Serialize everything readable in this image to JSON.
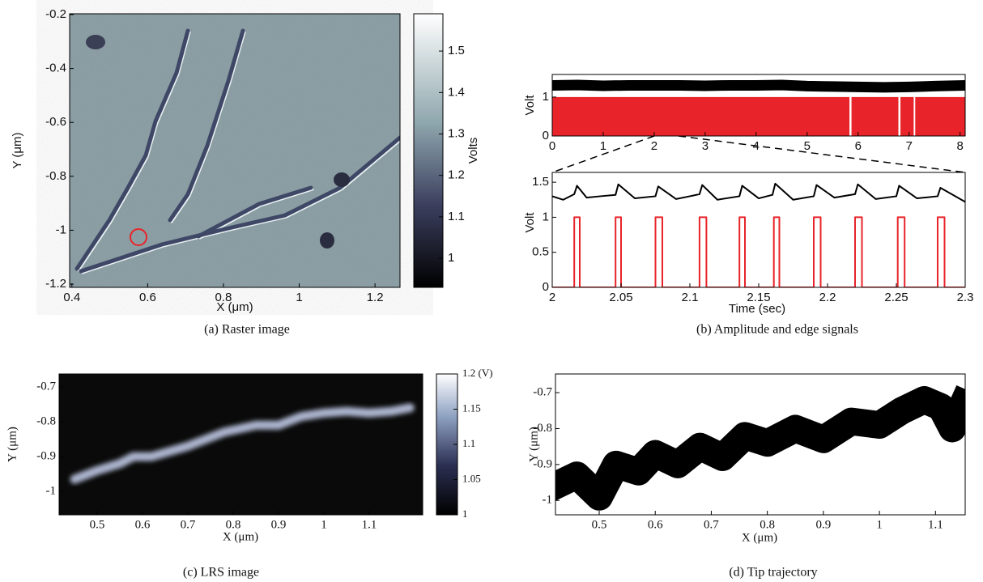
{
  "chart_data": [
    {
      "type": "heatmap",
      "caption": "(a) Raster image",
      "x_label": "X (μm)",
      "y_label": "Y (μm)",
      "xlim": [
        0.394,
        1.266
      ],
      "ylim": [
        -1.212,
        -0.197
      ],
      "xticks": [
        0.4,
        0.6,
        0.8,
        1,
        1.2
      ],
      "yticks": [
        -1.2,
        -1,
        -0.8,
        -0.6,
        -0.4,
        -0.2
      ],
      "colorbar": {
        "label": "Volts",
        "lim": [
          0.93,
          1.59
        ],
        "ticks": [
          1,
          1.1,
          1.2,
          1.3,
          1.4,
          1.5
        ]
      }
    },
    {
      "type": "line",
      "y_label": "Volt",
      "xlim": [
        0,
        8.1
      ],
      "ylim": [
        0,
        1.58
      ],
      "xticks": [
        0,
        1,
        2,
        3,
        4,
        5,
        6,
        7,
        8
      ],
      "yticks": [
        0,
        1
      ],
      "series": [
        {
          "color": "#e8242a",
          "fill": true,
          "x": [
            0,
            5.83,
            5.83,
            5.87,
            5.87,
            6.79,
            6.79,
            6.83,
            6.83,
            7.09,
            7.09,
            7.12,
            7.12,
            8.1
          ],
          "values": [
            1,
            1,
            0,
            0,
            1,
            1,
            0,
            0,
            1,
            1,
            0,
            0,
            1,
            1
          ]
        },
        {
          "color": "#000000",
          "width": 13,
          "x": [
            0,
            0.5,
            1,
            1.5,
            2,
            2.5,
            3,
            3.5,
            4,
            4.5,
            5,
            5.5,
            6,
            6.5,
            7,
            7.5,
            8.1
          ],
          "values": [
            1.3,
            1.31,
            1.29,
            1.3,
            1.3,
            1.3,
            1.29,
            1.3,
            1.3,
            1.31,
            1.28,
            1.27,
            1.26,
            1.25,
            1.26,
            1.28,
            1.3
          ]
        }
      ]
    },
    {
      "type": "line",
      "caption": "(b) Amplitude and edge signals",
      "x_label": "Time (sec)",
      "y_label": "Volt",
      "xlim": [
        2,
        2.3
      ],
      "ylim": [
        0,
        1.64
      ],
      "xticks": [
        2,
        2.05,
        2.1,
        2.15,
        2.2,
        2.25,
        2.3
      ],
      "yticks": [
        0,
        0.5,
        1,
        1.5
      ],
      "series": [
        {
          "color": "#e8242a",
          "width": 2,
          "x": [
            2,
            2.016,
            2.016,
            2.02,
            2.02,
            2.046,
            2.046,
            2.05,
            2.05,
            2.075,
            2.075,
            2.08,
            2.08,
            2.107,
            2.107,
            2.112,
            2.112,
            2.136,
            2.136,
            2.14,
            2.14,
            2.161,
            2.161,
            2.165,
            2.165,
            2.19,
            2.19,
            2.195,
            2.195,
            2.22,
            2.22,
            2.225,
            2.225,
            2.251,
            2.251,
            2.256,
            2.256,
            2.28,
            2.28,
            2.285,
            2.285,
            2.3
          ],
          "values": [
            0,
            0,
            1,
            1,
            0,
            0,
            1,
            1,
            0,
            0,
            1,
            1,
            0,
            0,
            1,
            1,
            0,
            0,
            1,
            1,
            0,
            0,
            1,
            1,
            0,
            0,
            1,
            1,
            0,
            0,
            1,
            1,
            0,
            0,
            1,
            1,
            0,
            0,
            1,
            1,
            0,
            0
          ]
        },
        {
          "color": "#000000",
          "width": 2,
          "x": [
            2,
            2.008,
            2.016,
            2.018,
            2.025,
            2.035,
            2.046,
            2.048,
            2.06,
            2.075,
            2.077,
            2.09,
            2.1,
            2.107,
            2.109,
            2.12,
            2.136,
            2.138,
            2.15,
            2.16,
            2.162,
            2.175,
            2.19,
            2.192,
            2.205,
            2.22,
            2.222,
            2.235,
            2.25,
            2.252,
            2.265,
            2.28,
            2.282,
            2.3
          ],
          "values": [
            1.3,
            1.25,
            1.33,
            1.45,
            1.28,
            1.3,
            1.32,
            1.47,
            1.27,
            1.3,
            1.44,
            1.26,
            1.3,
            1.33,
            1.46,
            1.25,
            1.3,
            1.45,
            1.27,
            1.32,
            1.48,
            1.25,
            1.3,
            1.46,
            1.28,
            1.33,
            1.47,
            1.26,
            1.3,
            1.45,
            1.27,
            1.3,
            1.42,
            1.22
          ]
        }
      ]
    },
    {
      "type": "heatmap",
      "caption": "(c) LRS image",
      "x_label": "X (μm)",
      "y_label": "Y (μm)",
      "xlim": [
        0.416,
        1.218
      ],
      "ylim": [
        -1.067,
        -0.663
      ],
      "xticks": [
        0.5,
        0.6,
        0.7,
        0.8,
        0.9,
        1,
        1.1
      ],
      "yticks": [
        -1,
        -0.9,
        -0.8,
        -0.7
      ],
      "x": [
        0.45,
        0.5,
        0.55,
        0.58,
        0.62,
        0.7,
        0.78,
        0.85,
        0.9,
        0.95,
        1,
        1.05,
        1.1,
        1.15,
        1.19
      ],
      "y": [
        -0.965,
        -0.94,
        -0.92,
        -0.9,
        -0.9,
        -0.87,
        -0.83,
        -0.81,
        -0.81,
        -0.785,
        -0.775,
        -0.77,
        -0.775,
        -0.77,
        -0.76
      ],
      "colorbar": {
        "lim": [
          1,
          1.2
        ],
        "ticks": [
          {
            "value": 1.2,
            "label": "1.2 (V)"
          },
          1.15,
          1.1,
          1.05,
          1
        ]
      }
    },
    {
      "type": "trajectory",
      "caption": "(d) Tip trajectory",
      "x_label": "X (μm)",
      "y_label": "Y (μm)",
      "xlim": [
        0.422,
        1.153
      ],
      "ylim": [
        -1.04,
        -0.648
      ],
      "xticks": [
        0.5,
        0.6,
        0.7,
        0.8,
        0.9,
        1,
        1.1
      ],
      "yticks": [
        -1,
        -0.9,
        -0.8,
        -0.7
      ],
      "x": [
        0.42,
        0.46,
        0.5,
        0.53,
        0.57,
        0.6,
        0.64,
        0.68,
        0.72,
        0.76,
        0.8,
        0.85,
        0.9,
        0.95,
        1,
        1.04,
        1.08,
        1.11,
        1.13,
        1.15
      ],
      "y": [
        -0.96,
        -0.93,
        -0.99,
        -0.9,
        -0.92,
        -0.87,
        -0.9,
        -0.85,
        -0.88,
        -0.82,
        -0.84,
        -0.8,
        -0.83,
        -0.78,
        -0.79,
        -0.75,
        -0.72,
        -0.74,
        -0.8,
        -0.73
      ]
    }
  ]
}
